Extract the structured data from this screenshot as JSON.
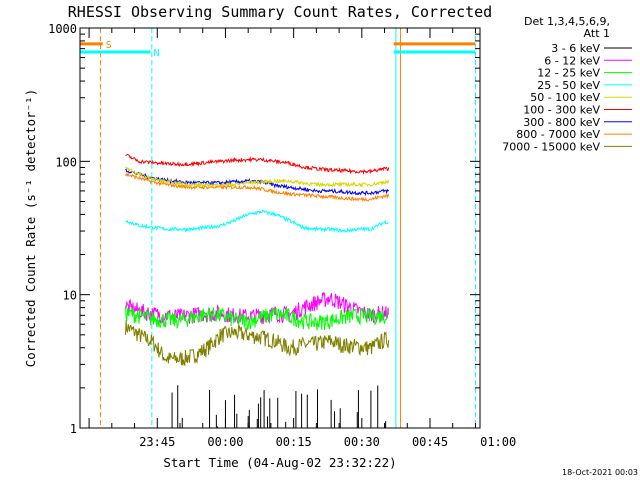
{
  "chart_data": {
    "type": "line",
    "title": "RHESSI Observing Summary Count Rates, Corrected",
    "xlabel": "Start Time (04-Aug-02 23:32:22)",
    "ylabel": "Corrected Count Rate (s⁻¹ detector⁻¹)",
    "yscale": "log",
    "ylim": [
      1,
      1000
    ],
    "xlim_minutes": [
      -17,
      71
    ],
    "x_unit": "minutes after 23:45",
    "y_ticks": [
      {
        "value": 1,
        "label": "1"
      },
      {
        "value": 10,
        "label": "10"
      },
      {
        "value": 100,
        "label": "100"
      },
      {
        "value": 1000,
        "label": "1000"
      }
    ],
    "x_ticks": [
      {
        "value": 0,
        "label": "23:45"
      },
      {
        "value": 15,
        "label": "00:00"
      },
      {
        "value": 30,
        "label": "00:15"
      },
      {
        "value": 45,
        "label": "00:30"
      },
      {
        "value": 60,
        "label": "00:45"
      },
      {
        "value": 75,
        "label": "01:00"
      }
    ],
    "legend_header": [
      "Det 1,3,4,5,6,9,",
      "Att 1"
    ],
    "legend_position": "right",
    "grid": false,
    "flags": [
      {
        "label": "S",
        "color": "#ff8000",
        "start": -17,
        "end": -12,
        "y": 760
      },
      {
        "label": "N",
        "color": "#00ffff",
        "start": -17,
        "end": -1.5,
        "y": 660
      }
    ],
    "post_gap_flags": [
      {
        "color": "#ff8000",
        "start": 52,
        "end": 70,
        "y": 760
      },
      {
        "color": "#00ffff",
        "start": 52,
        "end": 70,
        "y": 660
      }
    ],
    "dashed_lines": [
      {
        "x": -12.5,
        "color": "#ff8000"
      },
      {
        "x": -1.2,
        "color": "#00ffff"
      },
      {
        "x": 70,
        "color": "#00ffff"
      }
    ],
    "solid_lines": [
      {
        "x": 52.5,
        "color": "#00ffff"
      },
      {
        "x": 53.5,
        "color": "#ff8000"
      }
    ],
    "data_start": -7,
    "data_end": 51,
    "x": [
      -7,
      -4,
      -1,
      2,
      5,
      8,
      11,
      14,
      17,
      20,
      23,
      26,
      29,
      32,
      35,
      38,
      41,
      44,
      47,
      50
    ],
    "series": [
      {
        "name": "3 - 6 keV",
        "color": "#000000",
        "type": "sparse",
        "values": [
          1,
          1,
          1,
          1.1,
          1.2,
          1.3,
          1.6,
          1.8,
          2.0,
          1.6,
          1.4,
          1.8,
          1.6,
          1.3,
          1.2,
          1.3,
          1.2,
          1.2,
          1.1,
          1.1
        ]
      },
      {
        "name": "6 - 12 keV",
        "color": "#ff00ff",
        "values": [
          8.2,
          7.6,
          7.2,
          7.0,
          6.9,
          7.1,
          7.2,
          7.3,
          7.0,
          6.9,
          7.0,
          7.3,
          7.1,
          8.0,
          8.8,
          9.5,
          8.5,
          7.6,
          7.1,
          7.3
        ]
      },
      {
        "name": "12 - 25 keV",
        "color": "#00ff00",
        "values": [
          7.3,
          7.0,
          6.6,
          6.5,
          6.4,
          6.8,
          7.2,
          7.0,
          6.5,
          6.3,
          6.8,
          7.2,
          6.9,
          6.4,
          6.2,
          6.4,
          6.8,
          7.0,
          6.9,
          7.0
        ]
      },
      {
        "name": "25 - 50 keV",
        "color": "#00ffff",
        "values": [
          36,
          33,
          32,
          31,
          31,
          31,
          32,
          33,
          36,
          40,
          42,
          40,
          36,
          32,
          31,
          31,
          30,
          31,
          31,
          35
        ]
      },
      {
        "name": "50 - 100 keV",
        "color": "#d8d800",
        "values": [
          90,
          80,
          74,
          70,
          68,
          67,
          66,
          67,
          67,
          69,
          70,
          71,
          71,
          69,
          67,
          67,
          67,
          67,
          67,
          70
        ]
      },
      {
        "name": "100 - 300 keV",
        "color": "#ff0000",
        "values": [
          112,
          100,
          98,
          96,
          95,
          96,
          98,
          100,
          102,
          103,
          103,
          100,
          97,
          91,
          88,
          86,
          85,
          84,
          84,
          88
        ]
      },
      {
        "name": "300 - 800 keV",
        "color": "#0000ff",
        "values": [
          86,
          80,
          75,
          72,
          70,
          69,
          69,
          69,
          70,
          71,
          70,
          66,
          64,
          62,
          60,
          60,
          59,
          58,
          58,
          60
        ]
      },
      {
        "name": "800 - 7000 keV",
        "color": "#ff8000",
        "values": [
          80,
          75,
          70,
          67,
          65,
          64,
          64,
          64,
          64,
          64,
          62,
          59,
          57,
          56,
          55,
          54,
          53,
          52,
          52,
          55
        ]
      },
      {
        "name": "7000 - 15000 keV",
        "color": "#808000",
        "values": [
          5.8,
          5.0,
          4.4,
          3.3,
          3.3,
          3.5,
          4.0,
          5.0,
          5.2,
          5.0,
          4.8,
          4.5,
          4.0,
          4.2,
          4.3,
          4.5,
          4.2,
          4.1,
          4.0,
          4.6
        ]
      }
    ]
  },
  "footer": {
    "date_stamp": "18-Oct-2021 00:03"
  }
}
